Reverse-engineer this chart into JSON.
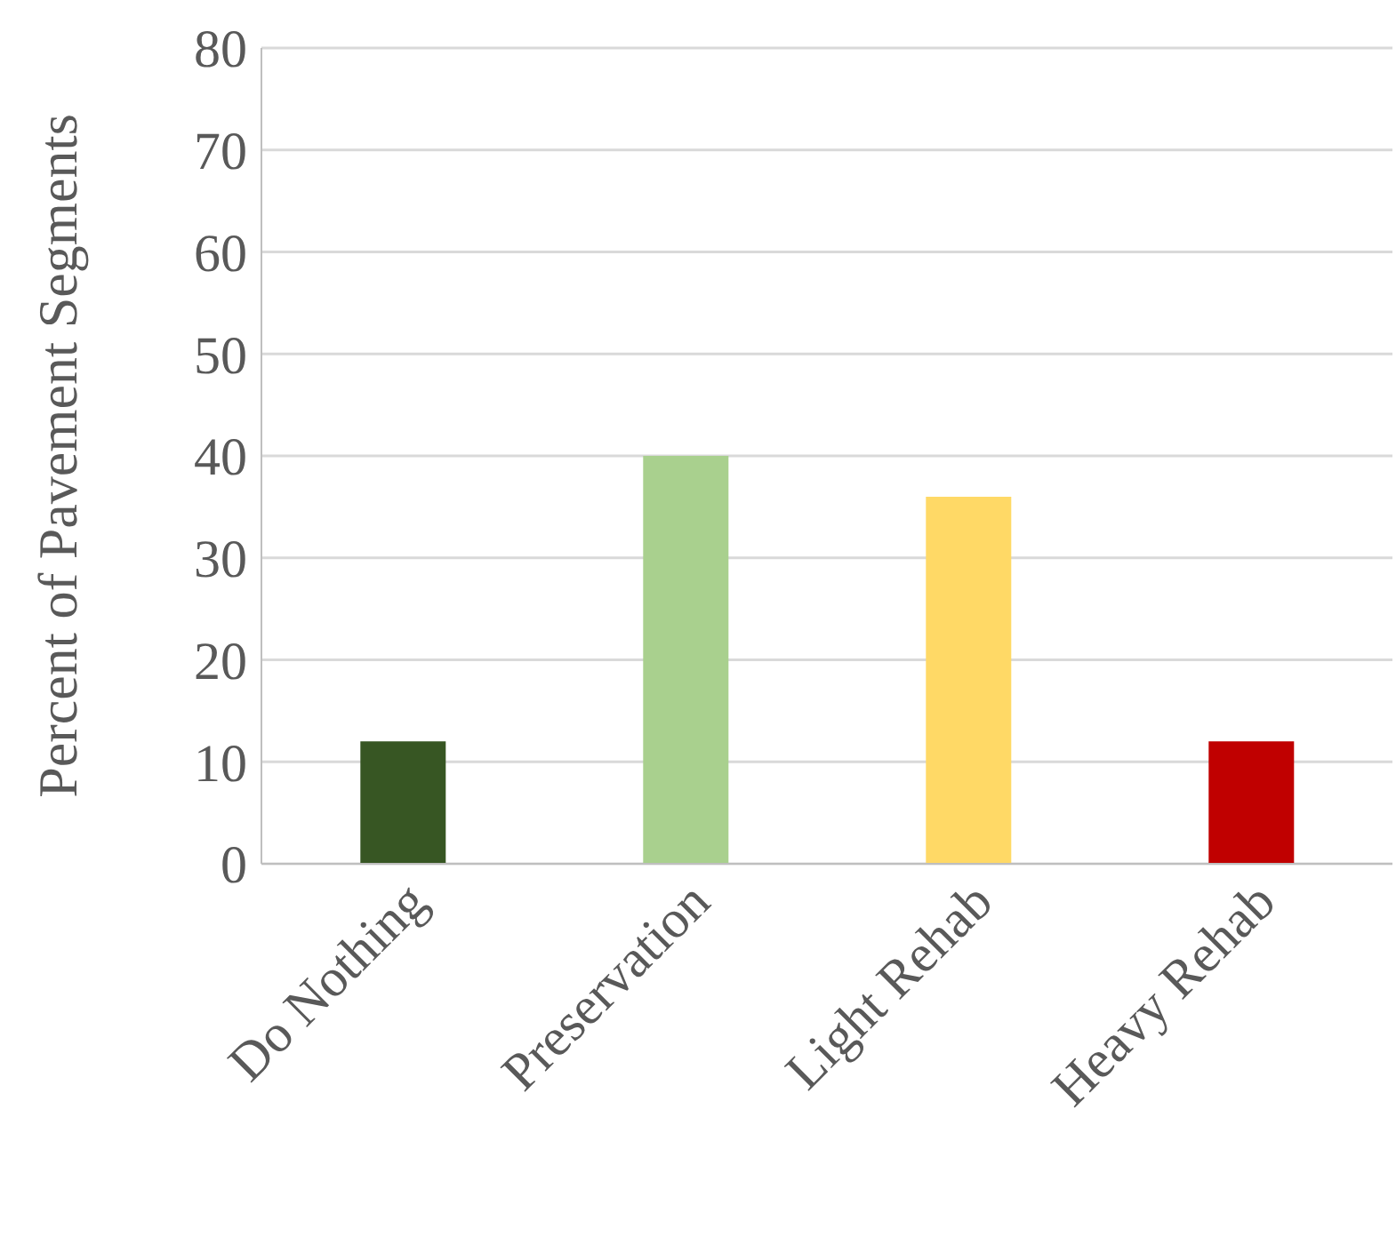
{
  "chart_data": {
    "type": "bar",
    "ylabel": "Percent of Pavement Segments",
    "categories": [
      "Do Nothing",
      "Preservation",
      "Light Rehab",
      "Heavy Rehab"
    ],
    "values": [
      12,
      40,
      36,
      12
    ],
    "colors": [
      "#375623",
      "#a9d08e",
      "#ffd966",
      "#c00000"
    ],
    "ylim": [
      0,
      80
    ],
    "yticks": [
      0,
      10,
      20,
      30,
      40,
      50,
      60,
      70,
      80
    ],
    "grid": "y"
  }
}
